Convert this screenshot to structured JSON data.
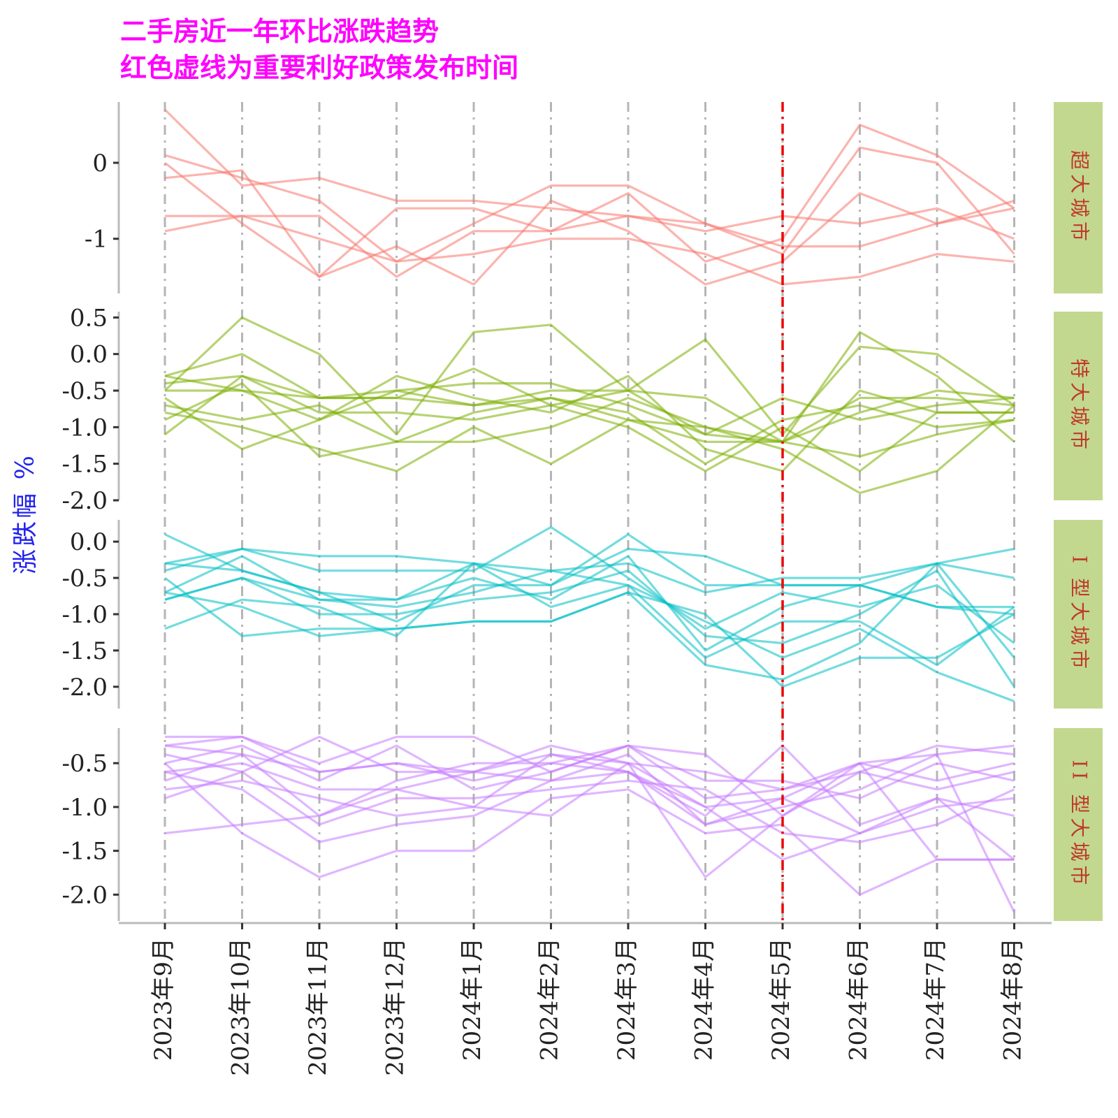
{
  "chart_data": {
    "type": "line",
    "title_lines": [
      "二手房近一年环比涨跌趋势",
      "红色虚线为重要利好政策发布时间"
    ],
    "ylabel": "涨跌幅 %",
    "x": [
      "2023年9月",
      "2023年10月",
      "2023年11月",
      "2023年12月",
      "2024年1月",
      "2024年2月",
      "2024年3月",
      "2024年4月",
      "2024年5月",
      "2024年6月",
      "2024年7月",
      "2024年8月"
    ],
    "policy_line_x": "2024年5月",
    "grid": "vertical dashed at each month",
    "policy_line_color": "#ee0000",
    "strip_fill": "#c2d88f",
    "strip_text_color": "#c0392b",
    "facets": [
      {
        "strip": "超大城市",
        "color": "#f8766d",
        "ylim": [
          -1.72,
          0.8
        ],
        "yticks": [
          0,
          -1
        ],
        "ytick_labels": [
          "0",
          "-1"
        ],
        "series": [
          [
            0.7,
            -0.3,
            -0.2,
            -0.5,
            -0.5,
            -0.6,
            -0.7,
            -0.9,
            -0.7,
            -0.8,
            -0.6,
            -1.0
          ],
          [
            0.1,
            -0.2,
            -0.5,
            -1.3,
            -0.8,
            -0.3,
            -0.3,
            -0.8,
            -1.1,
            -1.1,
            -0.8,
            -0.6
          ],
          [
            0.0,
            -0.8,
            -1.5,
            -1.1,
            -1.6,
            -0.5,
            -0.9,
            -1.6,
            -1.3,
            -0.4,
            -0.8,
            -0.5
          ],
          [
            -0.2,
            -0.1,
            -1.5,
            -0.6,
            -0.6,
            -0.9,
            -0.4,
            -1.3,
            -1.0,
            0.5,
            0.1,
            -0.6
          ],
          [
            -0.7,
            -0.7,
            -0.7,
            -1.5,
            -0.9,
            -0.9,
            -0.7,
            -0.8,
            -1.2,
            0.2,
            0.0,
            -1.2
          ],
          [
            -0.9,
            -0.7,
            -1.0,
            -1.3,
            -1.2,
            -1.0,
            -1.0,
            -1.2,
            -1.6,
            -1.5,
            -1.2,
            -1.3
          ]
        ]
      },
      {
        "strip": "特大城市",
        "color": "#7cae00",
        "ylim": [
          -2.0,
          0.58
        ],
        "yticks": [
          0.5,
          0.0,
          -0.5,
          -1.0,
          -1.5,
          -2.0
        ],
        "ytick_labels": [
          "0.5",
          "0.0",
          "-0.5",
          "-1.0",
          "-1.5",
          "-2.0"
        ],
        "series": [
          [
            -0.5,
            0.5,
            0.0,
            -1.1,
            0.3,
            0.4,
            -0.5,
            -1.1,
            -1.2,
            0.3,
            -0.3,
            -1.2
          ],
          [
            -0.3,
            0.0,
            -0.6,
            -0.6,
            -0.2,
            -0.7,
            -0.5,
            0.2,
            -1.1,
            0.1,
            0.0,
            -0.7
          ],
          [
            -0.4,
            -0.3,
            -0.6,
            -0.5,
            -0.7,
            -0.5,
            -0.5,
            -0.6,
            -1.2,
            -0.6,
            -0.6,
            -0.7
          ],
          [
            -0.5,
            -0.5,
            -0.9,
            -0.5,
            -0.4,
            -0.4,
            -0.7,
            -1.1,
            -0.6,
            -0.9,
            -0.7,
            -0.6
          ],
          [
            -0.6,
            -1.3,
            -0.9,
            -0.3,
            -0.6,
            -0.8,
            -0.3,
            -1.3,
            -1.6,
            -0.5,
            -0.8,
            -0.8
          ],
          [
            -0.7,
            -0.9,
            -0.7,
            -1.2,
            -0.8,
            -0.6,
            -0.8,
            -1.5,
            -0.9,
            -0.7,
            -1.0,
            -0.9
          ],
          [
            -0.8,
            -1.0,
            -1.3,
            -1.6,
            -1.0,
            -1.5,
            -0.9,
            -1.2,
            -1.2,
            -0.8,
            -0.5,
            -0.6
          ],
          [
            -0.9,
            -0.4,
            -1.4,
            -1.2,
            -1.2,
            -1.0,
            -0.6,
            -1.0,
            -1.2,
            -1.4,
            -1.1,
            -0.9
          ],
          [
            -1.1,
            -0.3,
            -0.8,
            -0.8,
            -0.9,
            -0.7,
            -1.0,
            -1.6,
            -1.0,
            -1.6,
            -0.8,
            -0.8
          ],
          [
            -0.3,
            -0.5,
            -0.6,
            -0.6,
            -0.7,
            -0.6,
            -0.9,
            -1.0,
            -1.3,
            -1.9,
            -1.6,
            -0.7
          ]
        ]
      },
      {
        "strip": "I 型大城市",
        "color": "#00bfc4",
        "ylim": [
          -2.3,
          0.3
        ],
        "yticks": [
          0.0,
          -0.5,
          -1.0,
          -1.5,
          -2.0
        ],
        "ytick_labels": [
          "0.0",
          "-0.5",
          "-1.0",
          "-1.5",
          "-2.0"
        ],
        "series": [
          [
            0.1,
            -0.4,
            -0.7,
            -0.8,
            -0.3,
            -0.6,
            0.1,
            -0.6,
            -0.6,
            -0.6,
            -0.9,
            -0.9
          ],
          [
            -0.3,
            -0.1,
            -0.2,
            -0.2,
            -0.3,
            -0.4,
            -0.3,
            -0.7,
            -0.5,
            -0.5,
            -0.3,
            -0.1
          ],
          [
            -0.4,
            -0.1,
            -0.4,
            -0.4,
            -0.4,
            0.2,
            -0.5,
            -1.2,
            -0.7,
            -0.9,
            -0.6,
            -1.4
          ],
          [
            -0.3,
            -0.4,
            -0.7,
            -1.1,
            -0.6,
            -0.6,
            -0.1,
            -0.2,
            -0.6,
            -0.6,
            -0.3,
            -0.5
          ],
          [
            -0.7,
            -0.2,
            -0.8,
            -0.8,
            -0.5,
            -0.8,
            -0.2,
            -1.5,
            -0.9,
            -0.6,
            -0.9,
            -1.0
          ],
          [
            -0.8,
            -0.5,
            -1.0,
            -1.0,
            -0.8,
            -0.7,
            -0.4,
            -1.3,
            -1.4,
            -1.0,
            -0.4,
            -2.0
          ],
          [
            -1.2,
            -0.8,
            -0.9,
            -1.3,
            -0.3,
            -0.9,
            -0.6,
            -1.6,
            -1.1,
            -1.1,
            -1.7,
            -0.9
          ],
          [
            -0.5,
            -1.3,
            -1.2,
            -1.2,
            -1.1,
            -1.1,
            -0.7,
            -1.0,
            -2.0,
            -1.6,
            -1.6,
            -1.0
          ],
          [
            -0.7,
            -0.9,
            -1.3,
            -1.2,
            -1.1,
            -1.1,
            -0.7,
            -1.7,
            -1.9,
            -1.4,
            -0.3,
            -1.6
          ],
          [
            -0.8,
            -0.5,
            -0.8,
            -0.9,
            -0.7,
            -0.4,
            -0.6,
            -1.1,
            -1.6,
            -1.2,
            -1.8,
            -2.2
          ]
        ]
      },
      {
        "strip": "II 型大城市",
        "color": "#c77cff",
        "ylim": [
          -2.3,
          -0.1
        ],
        "yticks": [
          -0.5,
          -1.0,
          -1.5,
          -2.0
        ],
        "ytick_labels": [
          "-0.5",
          "-1.0",
          "-1.5",
          "-2.0"
        ],
        "series": [
          [
            -0.2,
            -0.2,
            -0.5,
            -0.2,
            -0.2,
            -0.6,
            -0.3,
            -0.9,
            -0.8,
            -0.5,
            -0.4,
            -0.3
          ],
          [
            -0.3,
            -0.2,
            -0.6,
            -0.5,
            -0.7,
            -0.5,
            -0.3,
            -0.4,
            -1.1,
            -0.6,
            -0.3,
            -0.4
          ],
          [
            -0.4,
            -0.6,
            -0.2,
            -0.6,
            -0.6,
            -0.4,
            -0.6,
            -1.0,
            -0.9,
            -0.5,
            -0.7,
            -0.5
          ],
          [
            -0.5,
            -0.3,
            -0.7,
            -0.3,
            -0.8,
            -0.6,
            -0.3,
            -0.7,
            -0.7,
            -0.9,
            -0.5,
            -0.7
          ],
          [
            -0.6,
            -0.5,
            -0.8,
            -0.8,
            -0.6,
            -0.7,
            -0.4,
            -1.2,
            -0.9,
            -1.3,
            -0.9,
            -1.6
          ],
          [
            -0.7,
            -0.4,
            -1.1,
            -0.7,
            -0.5,
            -0.5,
            -0.6,
            -1.1,
            -0.3,
            -1.2,
            -0.9,
            -1.1
          ],
          [
            -0.8,
            -0.7,
            -0.9,
            -1.1,
            -1.0,
            -0.4,
            -0.5,
            -1.8,
            -1.1,
            -0.5,
            -1.6,
            -1.6
          ],
          [
            -0.9,
            -0.6,
            -1.2,
            -0.9,
            -0.9,
            -0.8,
            -0.7,
            -0.8,
            -1.3,
            -1.4,
            -1.2,
            -0.8
          ],
          [
            -1.3,
            -1.2,
            -1.1,
            -0.8,
            -1.0,
            -1.1,
            -0.5,
            -1.0,
            -1.6,
            -1.3,
            -1.0,
            -0.9
          ],
          [
            -0.6,
            -0.8,
            -1.4,
            -1.2,
            -1.1,
            -0.7,
            -0.6,
            -1.2,
            -1.0,
            -0.8,
            -0.4,
            -2.2
          ],
          [
            -0.5,
            -1.3,
            -1.8,
            -1.5,
            -1.5,
            -0.9,
            -0.8,
            -1.3,
            -1.2,
            -2.0,
            -1.6,
            -1.6
          ],
          [
            -0.3,
            -0.4,
            -0.6,
            -0.5,
            -0.6,
            -0.3,
            -0.5,
            -0.6,
            -0.8,
            -0.6,
            -0.8,
            -0.6
          ]
        ]
      }
    ]
  }
}
